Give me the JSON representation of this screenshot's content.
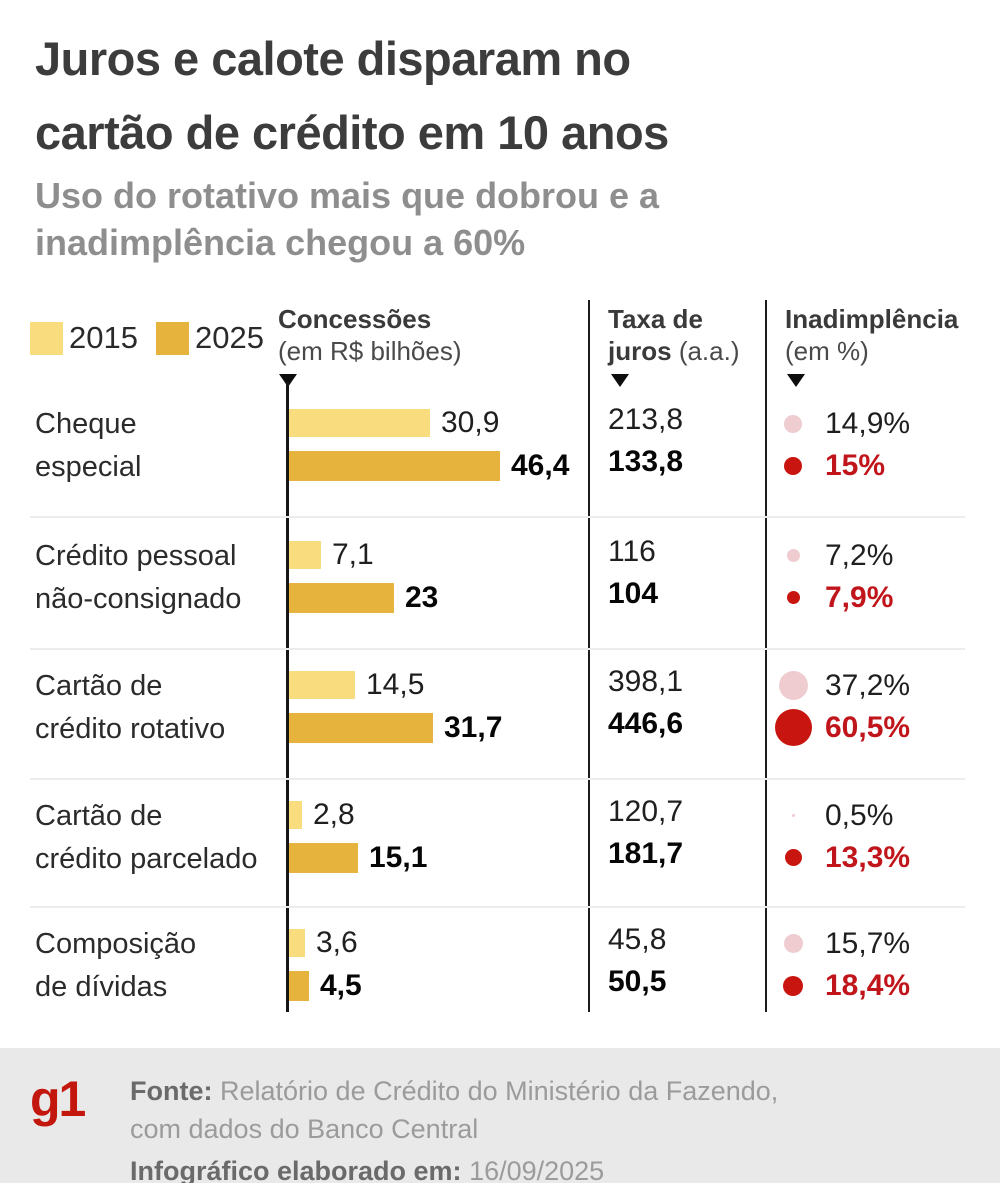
{
  "title_line1": "Juros e calote disparam no",
  "title_line2": "cartão de crédito em 10 anos",
  "subtitle_line1": "Uso do rotativo mais que dobrou e a",
  "subtitle_line2": "inadimplência chegou a 60%",
  "legend": {
    "year_2015": "2015",
    "year_2025": "2025"
  },
  "columns": {
    "c1_bold": "Concessões",
    "c1_sub": "(em R$ bilhões)",
    "c2_bold1": "Taxa de",
    "c2_bold2": "juros",
    "c2_reg": "(a.a.)",
    "c3_bold": "Inadimplência",
    "c3_sub": "(em %)"
  },
  "colors": {
    "bar_2015": "#f8dc7d",
    "bar_2025": "#e6b33d",
    "dot_2015": "#efccd0",
    "dot_2025": "#c9150f",
    "red_text": "#c0161b",
    "title_text": "#3c3c3c",
    "subtitle_text": "#8e8e8e",
    "footer_bg": "#e9e9e9",
    "logo_red": "#c3170e"
  },
  "chart_data": {
    "type": "bar",
    "title": "Juros e calote disparam no cartão de crédito em 10 anos",
    "subtitle": "Uso do rotativo mais que dobrou e a inadimplência chegou a 60%",
    "categories": [
      "Cheque especial",
      "Crédito pessoal não-consignado",
      "Cartão de crédito rotativo",
      "Cartão de crédito parcelado",
      "Composição de dívidas"
    ],
    "series": [
      {
        "name": "Concessões 2015 (em R$ bilhões)",
        "values": [
          30.9,
          7.1,
          14.5,
          2.8,
          3.6
        ]
      },
      {
        "name": "Concessões 2025 (em R$ bilhões)",
        "values": [
          46.4,
          23,
          31.7,
          15.1,
          4.5
        ]
      },
      {
        "name": "Taxa de juros (a.a.) 2015",
        "values": [
          213.8,
          116,
          398.1,
          120.7,
          45.8
        ]
      },
      {
        "name": "Taxa de juros (a.a.) 2025",
        "values": [
          133.8,
          104,
          446.6,
          181.7,
          50.5
        ]
      },
      {
        "name": "Inadimplência 2015 (em %)",
        "values": [
          14.9,
          7.2,
          37.2,
          0.5,
          15.7
        ]
      },
      {
        "name": "Inadimplência 2025 (em %)",
        "values": [
          15,
          7.9,
          60.5,
          13.3,
          18.4
        ]
      }
    ],
    "legend_position": "top",
    "grid": false
  },
  "rows": [
    {
      "label_line1": "Cheque",
      "label_line2": "especial",
      "bar_2015": 30.9,
      "bar_2025": 46.4,
      "bar_2015_label": "30,9",
      "bar_2025_label": "46,4",
      "rate_2015": "213,8",
      "rate_2025": "133,8",
      "def_2015": 14.9,
      "def_2025": 15,
      "def_2015_label": "14,9%",
      "def_2025_label": "15%"
    },
    {
      "label_line1": "Crédito pessoal",
      "label_line2": "não-consignado",
      "bar_2015": 7.1,
      "bar_2025": 23,
      "bar_2015_label": "7,1",
      "bar_2025_label": "23",
      "rate_2015": "116",
      "rate_2025": "104",
      "def_2015": 7.2,
      "def_2025": 7.9,
      "def_2015_label": "7,2%",
      "def_2025_label": "7,9%"
    },
    {
      "label_line1": "Cartão de",
      "label_line2": "crédito rotativo",
      "bar_2015": 14.5,
      "bar_2025": 31.7,
      "bar_2015_label": "14,5",
      "bar_2025_label": "31,7",
      "rate_2015": "398,1",
      "rate_2025": "446,6",
      "def_2015": 37.2,
      "def_2025": 60.5,
      "def_2015_label": "37,2%",
      "def_2025_label": "60,5%"
    },
    {
      "label_line1": "Cartão de",
      "label_line2": "crédito parcelado",
      "bar_2015": 2.8,
      "bar_2025": 15.1,
      "bar_2015_label": "2,8",
      "bar_2025_label": "15,1",
      "rate_2015": "120,7",
      "rate_2025": "181,7",
      "def_2015": 0.5,
      "def_2025": 13.3,
      "def_2015_label": "0,5%",
      "def_2025_label": "13,3%"
    },
    {
      "label_line1": "Composição",
      "label_line2": "de dívidas",
      "bar_2015": 3.6,
      "bar_2025": 4.5,
      "bar_2015_label": "3,6",
      "bar_2025_label": "4,5",
      "rate_2015": "45,8",
      "rate_2025": "50,5",
      "def_2015": 15.7,
      "def_2025": 18.4,
      "def_2015_label": "15,7%",
      "def_2025_label": "18,4%"
    }
  ],
  "footer": {
    "logo": "g1",
    "source_label": "Fonte:",
    "source_text1": "Relatório de Crédito do Ministério da Fazendo,",
    "source_text2": "com dados do Banco Central",
    "made_label": "Infográfico elaborado em:",
    "made_value": "16/09/2025"
  }
}
